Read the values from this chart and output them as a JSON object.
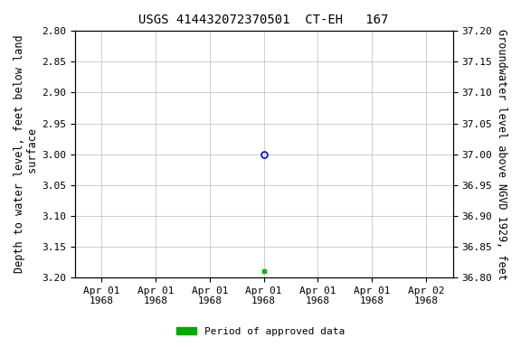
{
  "title": "USGS 414432072370501  CT-EH   167",
  "ylabel_left": "Depth to water level, feet below land\n surface",
  "ylabel_right": "Groundwater level above NGVD 1929, feet",
  "ylim_left": [
    2.8,
    3.2
  ],
  "ylim_right": [
    36.8,
    37.2
  ],
  "yticks_left": [
    2.8,
    2.85,
    2.9,
    2.95,
    3.0,
    3.05,
    3.1,
    3.15,
    3.2
  ],
  "yticks_right": [
    36.8,
    36.85,
    36.9,
    36.95,
    37.0,
    37.05,
    37.1,
    37.15,
    37.2
  ],
  "x_tick_hours": [
    0,
    4,
    8,
    12,
    16,
    20,
    24
  ],
  "x_tick_labels": [
    "Apr 01\n1968",
    "Apr 01\n1968",
    "Apr 01\n1968",
    "Apr 01\n1968",
    "Apr 01\n1968",
    "Apr 01\n1968",
    "Apr 02\n1968"
  ],
  "data_open_hour": 12,
  "data_open_y": 3.0,
  "data_open_color": "blue",
  "data_filled_hour": 12,
  "data_filled_y": 3.19,
  "data_filled_color": "#00bb00",
  "legend_label": "Period of approved data",
  "legend_color": "#00aa00",
  "background_color": "#ffffff",
  "grid_color": "#bbbbbb",
  "font_family": "monospace",
  "title_fontsize": 10,
  "axis_label_fontsize": 8.5,
  "tick_fontsize": 8
}
